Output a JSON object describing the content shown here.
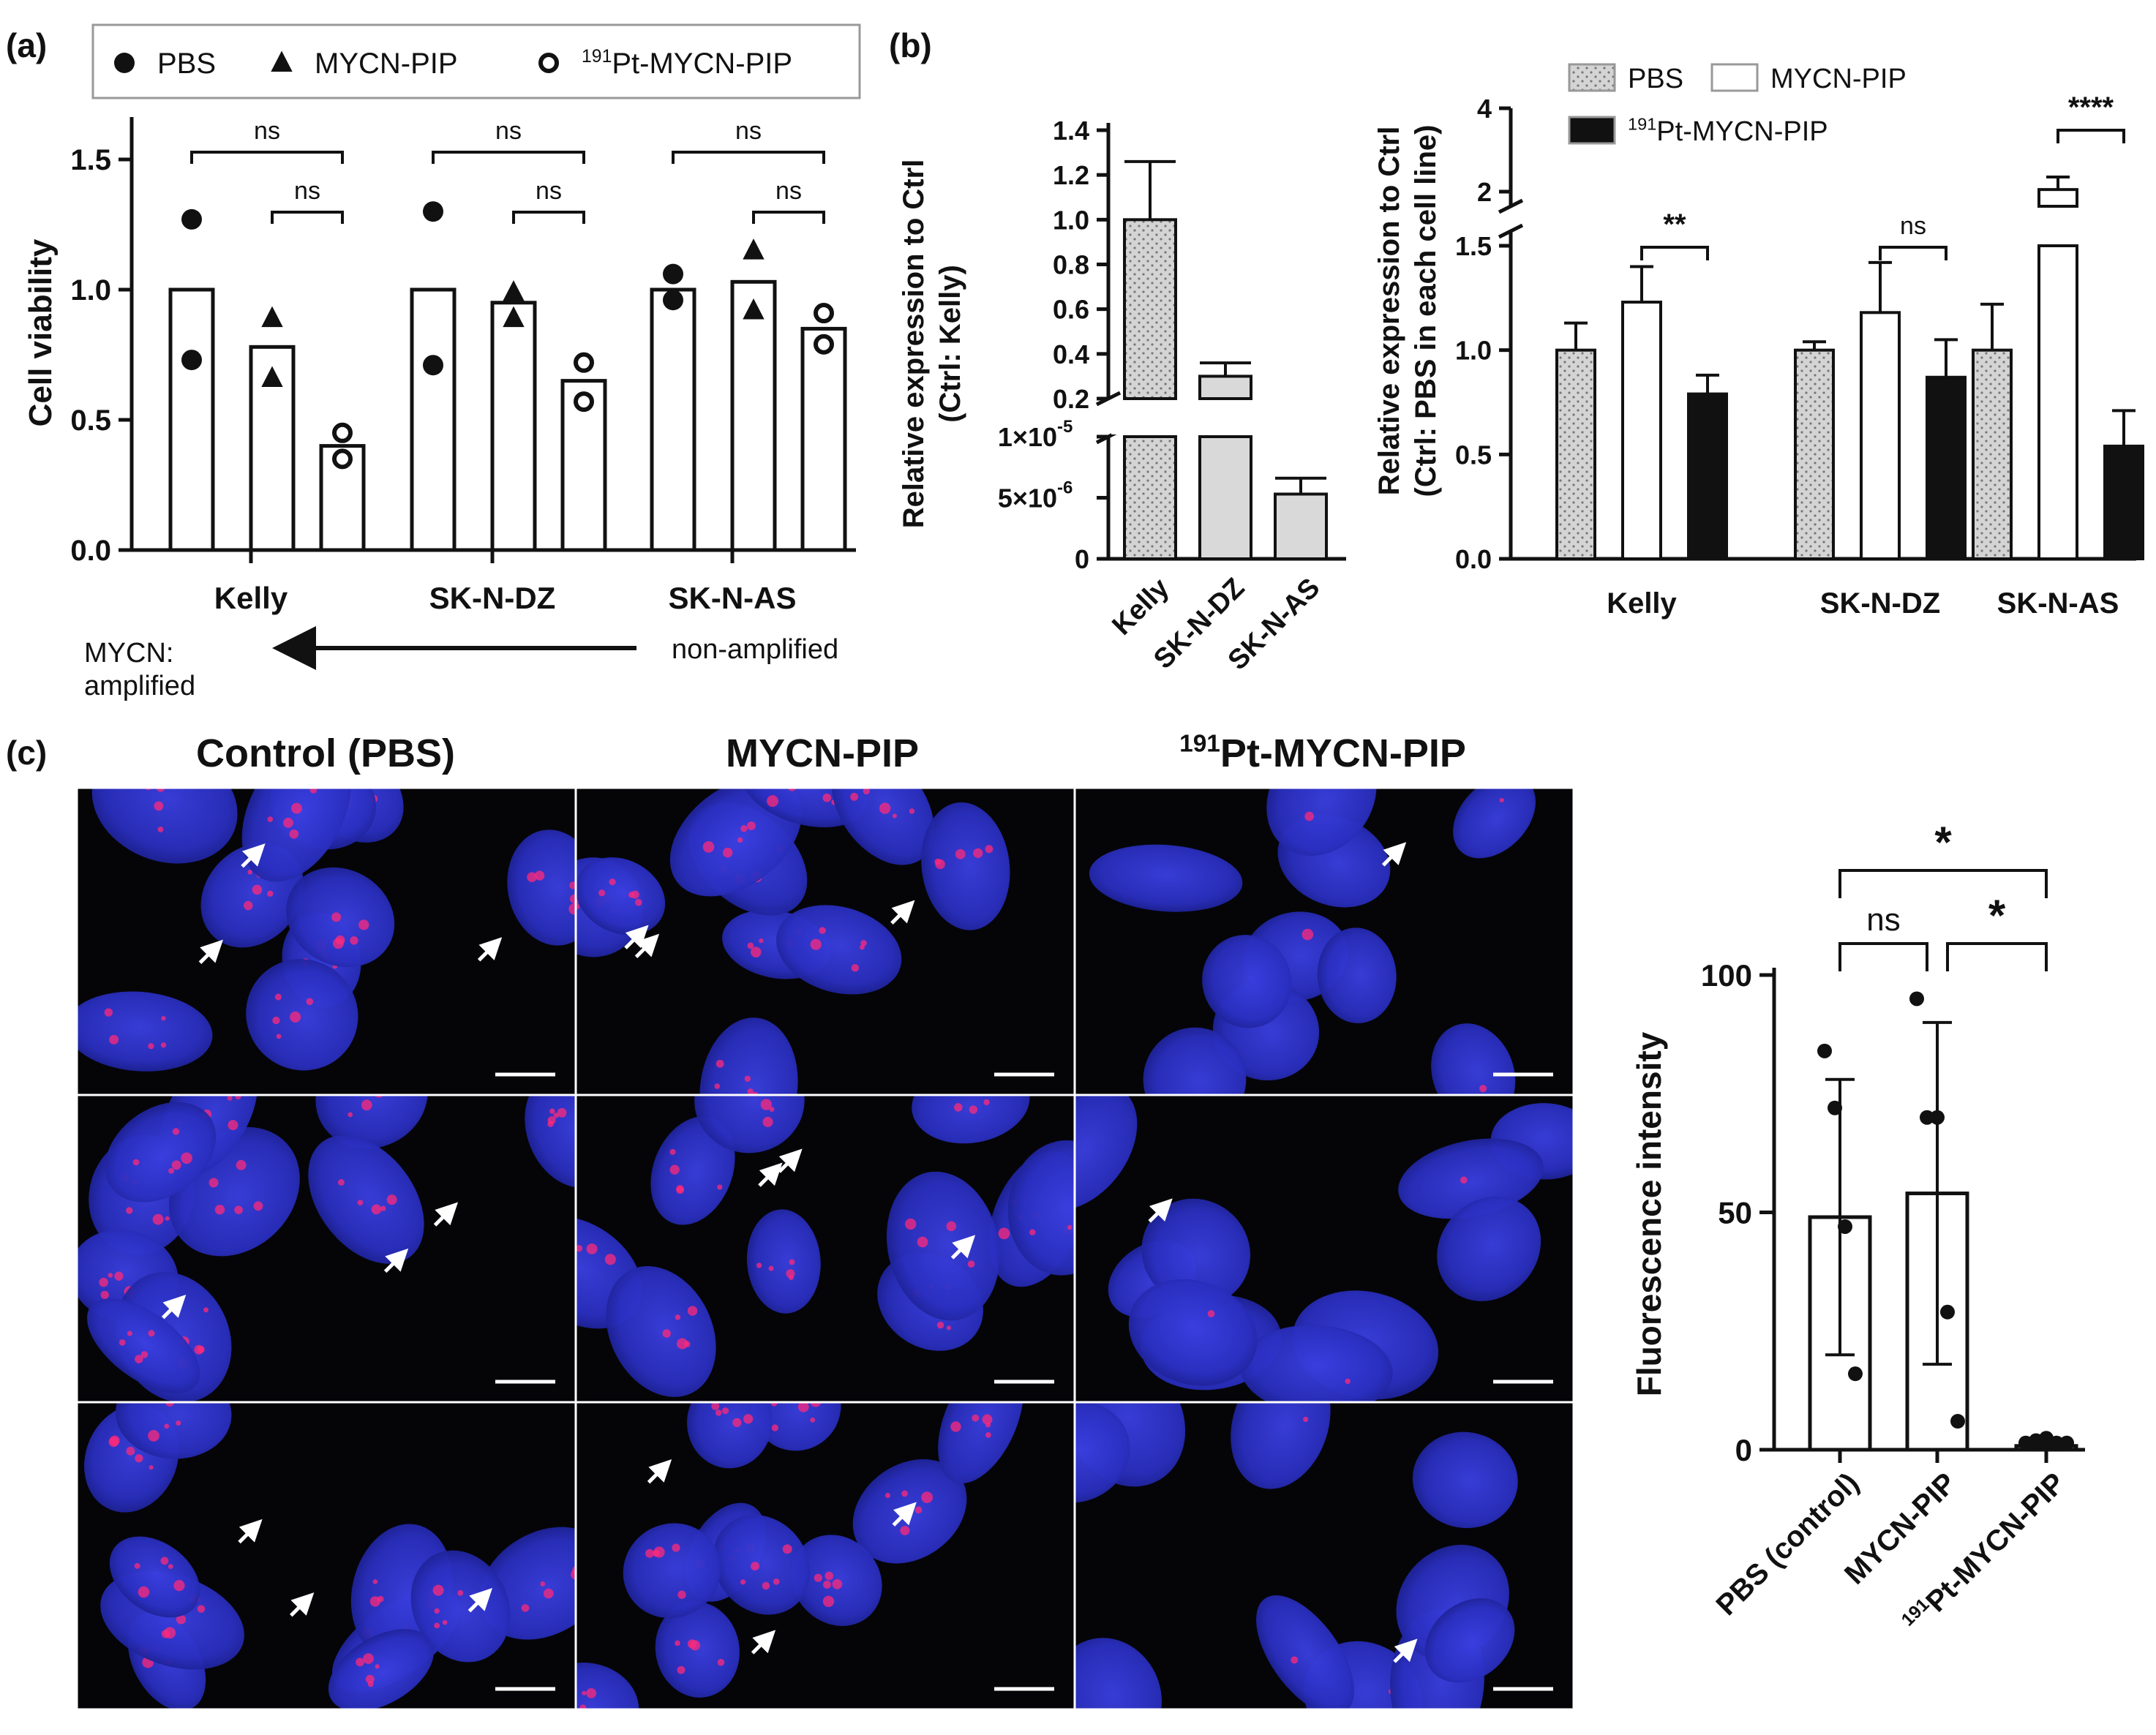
{
  "panels": {
    "a": "(a)",
    "b": "(b)",
    "c": "(c)"
  },
  "colors": {
    "black": "#111111",
    "light_grey": "#d9d9d9",
    "stipple_grey": "#cfcfcf",
    "white": "#ffffff",
    "nucleus_blue": "#2c33c8",
    "foci_red": "#ff2a7a"
  },
  "panel_a": {
    "legend": [
      {
        "label": "PBS",
        "marker": "filled-circle"
      },
      {
        "label": "MYCN-PIP",
        "marker": "filled-triangle"
      },
      {
        "sup": "191",
        "label": "Pt-MYCN-PIP",
        "marker": "open-circle"
      }
    ],
    "arrow_left_text": [
      "MYCN:",
      "amplified"
    ],
    "arrow_right_text": "non-amplified",
    "chart_data": {
      "type": "bar",
      "ylabel": "Cell viability",
      "ylim": [
        0,
        1.5
      ],
      "yticks": [
        "0.0",
        "0.5",
        "1.0",
        "1.5"
      ],
      "categories": [
        "Kelly",
        "SK-N-DZ",
        "SK-N-AS"
      ],
      "series": [
        {
          "name": "PBS",
          "values": [
            1.0,
            1.0,
            1.0
          ],
          "points": [
            [
              1.27,
              0.73
            ],
            [
              1.3,
              0.71
            ],
            [
              1.06,
              0.96
            ]
          ]
        },
        {
          "name": "MYCN-PIP",
          "values": [
            0.78,
            0.95,
            1.03
          ],
          "points": [
            [
              0.89,
              0.66
            ],
            [
              0.99,
              0.89
            ],
            [
              1.15,
              0.92
            ]
          ]
        },
        {
          "name": "191Pt-MYCN-PIP",
          "values": [
            0.4,
            0.65,
            0.85
          ],
          "points": [
            [
              0.45,
              0.35
            ],
            [
              0.72,
              0.57
            ],
            [
              0.91,
              0.79
            ]
          ]
        }
      ],
      "brackets": [
        {
          "group": 0,
          "from": 0,
          "to": 2,
          "label": "ns"
        },
        {
          "group": 0,
          "from": 1,
          "to": 2,
          "label": "ns"
        },
        {
          "group": 1,
          "from": 0,
          "to": 2,
          "label": "ns"
        },
        {
          "group": 1,
          "from": 1,
          "to": 2,
          "label": "ns"
        },
        {
          "group": 2,
          "from": 0,
          "to": 2,
          "label": "ns"
        },
        {
          "group": 2,
          "from": 1,
          "to": 2,
          "label": "ns"
        }
      ]
    }
  },
  "panel_b_left": {
    "chart_data": {
      "type": "bar",
      "ylabel": [
        "Relative expression to Ctrl",
        "(Ctrl: Kelly)"
      ],
      "categories": [
        "Kelly",
        "SK-N-DZ",
        "SK-N-AS"
      ],
      "values": [
        1.0,
        0.3,
        5.3e-06
      ],
      "errors": [
        0.26,
        0.06,
        1.3e-06
      ],
      "upper_ylim": [
        0.2,
        1.4
      ],
      "upper_yticks": [
        "0.2",
        "0.4",
        "0.6",
        "0.8",
        "1.0",
        "1.2",
        "1.4"
      ],
      "lower_ylim": [
        0,
        1e-05
      ],
      "lower_yticks": [
        "0",
        "5×10",
        "1×10"
      ],
      "lower_tick_exponents": [
        "",
        "-6",
        "-5"
      ],
      "axis_break": true
    }
  },
  "panel_b_right": {
    "legend": [
      {
        "label": "PBS",
        "fill": "stipple"
      },
      {
        "label": "MYCN-PIP",
        "fill": "white"
      },
      {
        "sup": "191",
        "label": "Pt-MYCN-PIP",
        "fill": "black"
      }
    ],
    "chart_data": {
      "type": "bar",
      "ylabel": [
        "Relative expression to Ctrl",
        "(Ctrl: PBS in each cell line)"
      ],
      "categories": [
        "Kelly",
        "SK-N-DZ",
        "SK-N-AS"
      ],
      "series": [
        {
          "name": "PBS",
          "values": [
            1.0,
            1.0,
            1.0
          ],
          "errors": [
            0.13,
            0.04,
            0.22
          ]
        },
        {
          "name": "MYCN-PIP",
          "values": [
            1.23,
            1.18,
            2.05
          ],
          "errors": [
            0.17,
            0.24,
            0.3
          ]
        },
        {
          "name": "191Pt-MYCN-PIP",
          "values": [
            0.79,
            0.87,
            0.54
          ],
          "errors": [
            0.09,
            0.18,
            0.17
          ]
        }
      ],
      "lower_ylim": [
        0,
        1.5
      ],
      "lower_yticks": [
        "0.0",
        "0.5",
        "1.0",
        "1.5"
      ],
      "upper_ylim": [
        2,
        4
      ],
      "upper_yticks": [
        "2",
        "4"
      ],
      "axis_break": true,
      "brackets": [
        {
          "group": 0,
          "label": "**"
        },
        {
          "group": 1,
          "label": "ns"
        },
        {
          "group": 2,
          "label": "****"
        }
      ]
    }
  },
  "panel_c": {
    "column_titles": [
      {
        "label": "Control (PBS)"
      },
      {
        "label": "MYCN-PIP"
      },
      {
        "sup": "191",
        "label": "Pt-MYCN-PIP"
      }
    ],
    "chart_data": {
      "type": "bar",
      "ylabel": "Fluorescence intensity",
      "ylim": [
        0,
        100
      ],
      "yticks": [
        "0",
        "50",
        "100"
      ],
      "categories": [
        "PBS (control)",
        "MYCN-PIP",
        "191Pt-MYCN-PIP"
      ],
      "category_sups": [
        "",
        "",
        "191"
      ],
      "category_labels": [
        "PBS (control)",
        "MYCN-PIP",
        "Pt-MYCN-PIP"
      ],
      "values": [
        49,
        54,
        0.8
      ],
      "sd": [
        29,
        36,
        0.3
      ],
      "points": [
        [
          84,
          72,
          47,
          16
        ],
        [
          95,
          70,
          70,
          29,
          6
        ],
        [
          0.5,
          1,
          1.5,
          0.5,
          0.5
        ]
      ],
      "brackets": [
        {
          "from": 0,
          "to": 2,
          "label": "*"
        },
        {
          "from": 0,
          "to": 1,
          "label": "ns"
        },
        {
          "from": 1,
          "to": 2,
          "label": "*"
        }
      ]
    }
  }
}
